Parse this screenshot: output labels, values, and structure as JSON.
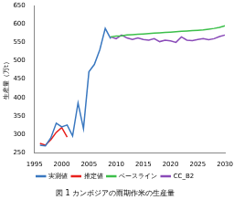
{
  "chart_data": {
    "type": "line",
    "title": "図 1 カンボジアの雨期作米の生産量",
    "ylabel": "生産量（万t）",
    "x": [
      1996,
      1997,
      1998,
      1999,
      2000,
      2001,
      2002,
      2003,
      2004,
      2005,
      2006,
      2007,
      2008,
      2009,
      2010,
      2011,
      2012,
      2013,
      2014,
      2015,
      2016,
      2017,
      2018,
      2019,
      2020,
      2021,
      2022,
      2023,
      2024,
      2025,
      2026,
      2027,
      2028,
      2029,
      2030
    ],
    "series": [
      {
        "name": "実測値",
        "color": "#3a78c0",
        "values": [
          270,
          268,
          290,
          330,
          320,
          325,
          295,
          385,
          315,
          470,
          490,
          530,
          588,
          560,
          null,
          null,
          null,
          null,
          null,
          null,
          null,
          null,
          null,
          null,
          null,
          null,
          null,
          null,
          null,
          null,
          null,
          null,
          null,
          null,
          null
        ]
      },
      {
        "name": "推定値",
        "color": "#e8201c",
        "values": [
          275,
          270,
          285,
          305,
          318,
          292,
          null,
          null,
          null,
          null,
          null,
          null,
          null,
          null,
          null,
          null,
          null,
          null,
          null,
          null,
          null,
          null,
          null,
          null,
          null,
          null,
          null,
          null,
          null,
          null,
          null,
          null,
          null,
          null,
          null
        ]
      },
      {
        "name": "ベースライン",
        "color": "#3cbf4a",
        "values": [
          null,
          null,
          null,
          null,
          null,
          null,
          null,
          null,
          null,
          null,
          null,
          null,
          null,
          565,
          567,
          568,
          570,
          571,
          572,
          573,
          574,
          575,
          576,
          577,
          578,
          579,
          580,
          581,
          582,
          583,
          584,
          586,
          588,
          591,
          595
        ]
      },
      {
        "name": "CC_B2",
        "color": "#8a4bb8",
        "values": [
          null,
          null,
          null,
          null,
          null,
          null,
          null,
          null,
          null,
          null,
          null,
          null,
          null,
          565,
          560,
          570,
          562,
          558,
          562,
          558,
          556,
          560,
          552,
          556,
          554,
          550,
          565,
          556,
          555,
          558,
          560,
          557,
          560,
          566,
          570
        ]
      }
    ],
    "xlim": [
      1995,
      2030
    ],
    "xticks": [
      1995,
      2000,
      2005,
      2010,
      2015,
      2020,
      2025,
      2030
    ],
    "ylim": [
      250,
      650
    ],
    "yticks": [
      250,
      300,
      350,
      400,
      450,
      500,
      550,
      600,
      650
    ],
    "grid": false,
    "legend": "bottom"
  }
}
